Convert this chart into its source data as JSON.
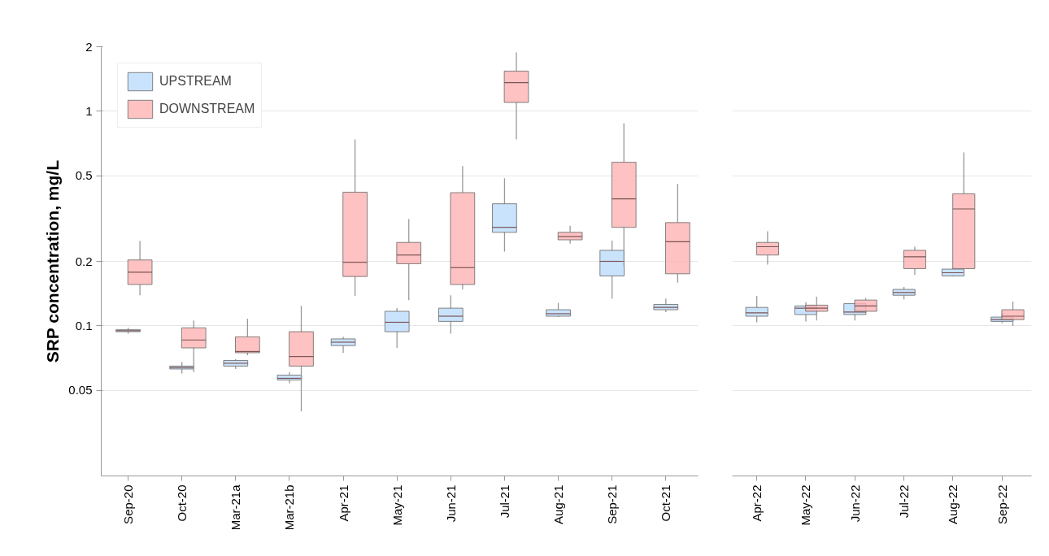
{
  "chart_data": [
    {
      "type": "box",
      "ylabel": "SRP concentration, mg/L",
      "log": true,
      "grid": "y",
      "legend": "top left",
      "ylim": [
        0.02,
        2
      ],
      "yticks": [
        0.05,
        0.1,
        0.2,
        0.5,
        1,
        2
      ],
      "categories": [
        "Sep-20",
        "Oct-20",
        "Mar-21a",
        "Mar-21b",
        "Apr-21",
        "May-21",
        "Jun-21",
        "Jul-21",
        "Aug-21",
        "Sep-21",
        "Oct-21"
      ],
      "series": [
        {
          "name": "UPSTREAM",
          "color": "#bddcfb",
          "boxes": [
            {
              "low": 0.092,
              "q1": 0.094,
              "median": 0.095,
              "q3": 0.096,
              "high": 0.098
            },
            {
              "low": 0.06,
              "q1": 0.063,
              "median": 0.064,
              "q3": 0.065,
              "high": 0.068
            },
            {
              "low": 0.063,
              "q1": 0.065,
              "median": 0.067,
              "q3": 0.069,
              "high": 0.07
            },
            {
              "low": 0.054,
              "q1": 0.056,
              "median": 0.057,
              "q3": 0.059,
              "high": 0.061
            },
            {
              "low": 0.075,
              "q1": 0.081,
              "median": 0.084,
              "q3": 0.087,
              "high": 0.089
            },
            {
              "low": 0.079,
              "q1": 0.094,
              "median": 0.104,
              "q3": 0.117,
              "high": 0.121
            },
            {
              "low": 0.092,
              "q1": 0.105,
              "median": 0.111,
              "q3": 0.121,
              "high": 0.139
            },
            {
              "low": 0.222,
              "q1": 0.273,
              "median": 0.288,
              "q3": 0.371,
              "high": 0.488
            },
            {
              "low": 0.11,
              "q1": 0.111,
              "median": 0.114,
              "q3": 0.119,
              "high": 0.128
            },
            {
              "low": 0.134,
              "q1": 0.171,
              "median": 0.2,
              "q3": 0.225,
              "high": 0.25
            },
            {
              "low": 0.116,
              "q1": 0.119,
              "median": 0.122,
              "q3": 0.126,
              "high": 0.134
            }
          ]
        },
        {
          "name": "DOWNSTREAM",
          "color": "#ffb3b3",
          "boxes": [
            {
              "low": 0.139,
              "q1": 0.156,
              "median": 0.178,
              "q3": 0.203,
              "high": 0.249
            },
            {
              "low": 0.061,
              "q1": 0.079,
              "median": 0.086,
              "q3": 0.098,
              "high": 0.106
            },
            {
              "low": 0.073,
              "q1": 0.075,
              "median": 0.076,
              "q3": 0.089,
              "high": 0.108
            },
            {
              "low": 0.04,
              "q1": 0.065,
              "median": 0.072,
              "q3": 0.094,
              "high": 0.124
            },
            {
              "low": 0.138,
              "q1": 0.17,
              "median": 0.198,
              "q3": 0.42,
              "high": 0.74
            },
            {
              "low": 0.132,
              "q1": 0.195,
              "median": 0.214,
              "q3": 0.245,
              "high": 0.315
            },
            {
              "low": 0.148,
              "q1": 0.156,
              "median": 0.187,
              "q3": 0.418,
              "high": 0.556
            },
            {
              "low": 0.74,
              "q1": 1.1,
              "median": 1.36,
              "q3": 1.54,
              "high": 1.88
            },
            {
              "low": 0.242,
              "q1": 0.252,
              "median": 0.261,
              "q3": 0.273,
              "high": 0.293
            },
            {
              "low": 0.189,
              "q1": 0.288,
              "median": 0.391,
              "q3": 0.579,
              "high": 0.88
            },
            {
              "low": 0.159,
              "q1": 0.175,
              "median": 0.247,
              "q3": 0.303,
              "high": 0.459
            }
          ]
        }
      ]
    },
    {
      "type": "box",
      "log": true,
      "grid": "y",
      "tick_labels": "x",
      "ylim": [
        0.02,
        2
      ],
      "yticks": [
        0.05,
        0.1,
        0.2,
        0.5,
        1,
        2
      ],
      "categories": [
        "Apr-22",
        "May-22",
        "Jun-22",
        "Jul-22",
        "Aug-22",
        "Sep-22"
      ],
      "series": [
        {
          "color": "#bddcfb",
          "boxes": [
            {
              "low": 0.104,
              "q1": 0.111,
              "median": 0.115,
              "q3": 0.122,
              "high": 0.138
            },
            {
              "low": 0.105,
              "q1": 0.113,
              "median": 0.121,
              "q3": 0.124,
              "high": 0.129
            },
            {
              "low": 0.106,
              "q1": 0.113,
              "median": 0.116,
              "q3": 0.127,
              "high": 0.128
            },
            {
              "low": 0.133,
              "q1": 0.139,
              "median": 0.143,
              "q3": 0.148,
              "high": 0.152
            },
            {
              "low": 0.17,
              "q1": 0.171,
              "median": 0.177,
              "q3": 0.184,
              "high": 0.187
            },
            {
              "low": 0.103,
              "q1": 0.105,
              "median": 0.107,
              "q3": 0.11,
              "high": 0.115
            }
          ]
        },
        {
          "color": "#ffb3b3",
          "boxes": [
            {
              "low": 0.193,
              "q1": 0.214,
              "median": 0.234,
              "q3": 0.245,
              "high": 0.276
            },
            {
              "low": 0.106,
              "q1": 0.117,
              "median": 0.121,
              "q3": 0.125,
              "high": 0.137
            },
            {
              "low": 0.116,
              "q1": 0.117,
              "median": 0.124,
              "q3": 0.132,
              "high": 0.135
            },
            {
              "low": 0.173,
              "q1": 0.185,
              "median": 0.21,
              "q3": 0.225,
              "high": 0.234
            },
            {
              "low": 0.176,
              "q1": 0.185,
              "median": 0.351,
              "q3": 0.413,
              "high": 0.643
            },
            {
              "low": 0.1,
              "q1": 0.107,
              "median": 0.111,
              "q3": 0.119,
              "high": 0.13
            }
          ]
        }
      ]
    }
  ]
}
